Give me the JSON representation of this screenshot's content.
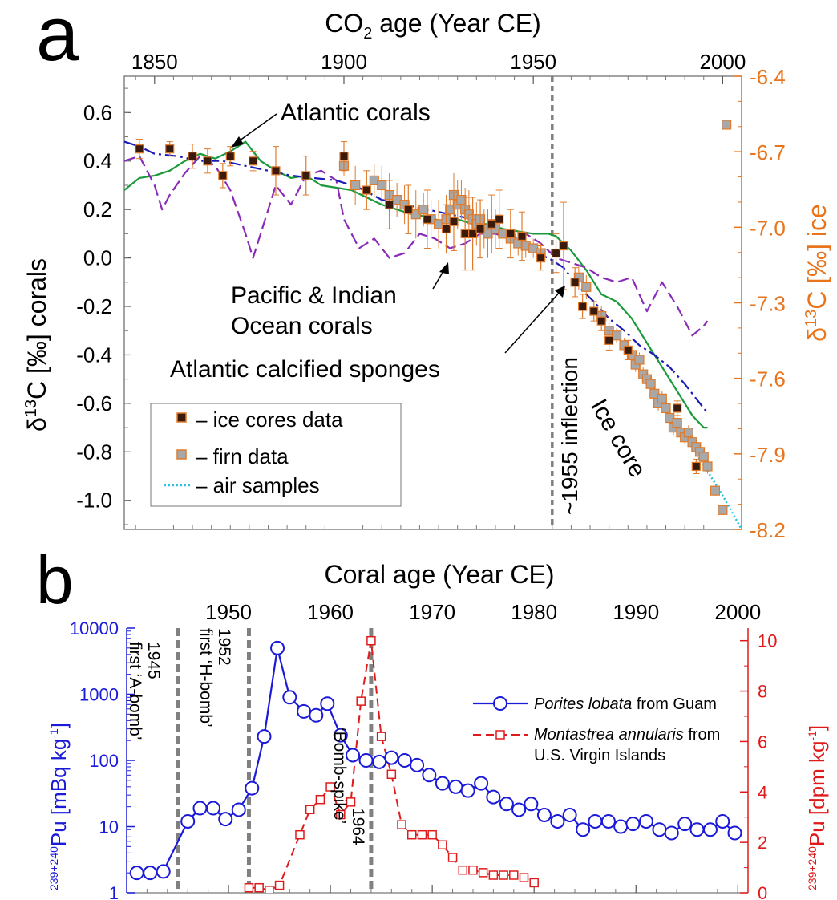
{
  "chart_data": [
    {
      "panel": "a",
      "type": "line",
      "title": "CO2 age (Year CE)",
      "title_base": "CO",
      "title_sub": "2",
      "title_rest": " age (Year CE)",
      "ylabel_left": "δ13C [‰] corals",
      "ylabel_left_parts": {
        "a": "δ",
        "sup": "13",
        "b": "C [‰] corals"
      },
      "ylabel_right": "δ13C [‰] ice",
      "ylabel_right_parts": {
        "a": "δ",
        "sup": "13",
        "b": "C [‰] ice"
      },
      "xlim": [
        1842,
        2005
      ],
      "xticks": [
        1850,
        1900,
        1950,
        2000
      ],
      "ylim_left": [
        -1.12,
        0.75
      ],
      "yticks_left": [
        0.6,
        0.4,
        0.2,
        0.0,
        -0.2,
        -0.4,
        -0.6,
        -0.8,
        -1.0
      ],
      "ytick_labels_left": [
        "0.6",
        "0.4",
        "0.2",
        "0.0",
        "-0.2",
        "-0.4",
        "-0.6",
        "-0.8",
        "-1.0"
      ],
      "ylim_right": [
        -8.2,
        -6.4
      ],
      "yticks_right": [
        -6.4,
        -6.7,
        -7.0,
        -7.3,
        -7.6,
        -7.9,
        -8.2
      ],
      "ytick_labels_right": [
        "-6.4",
        "-6.7",
        "-7.0",
        "-7.3",
        "-7.6",
        "-7.9",
        "-8.2"
      ],
      "colors": {
        "atlantic_corals": "#1a9a3a",
        "pacific": "#8a2bb8",
        "sponges": "#1a1ab8",
        "ice": "#3a1a0a",
        "ice_edge": "#e07a2a",
        "firn": "#a8a8a8",
        "air": "#2ac0e0",
        "right_axis": "#e8741c",
        "vline": "#808080"
      },
      "series": [
        {
          "name": "Atlantic corals",
          "style": "solid",
          "x": [
            1842,
            1846,
            1850,
            1854,
            1858,
            1862,
            1866,
            1870,
            1874,
            1876,
            1878,
            1882,
            1886,
            1890,
            1894,
            1898,
            1902,
            1906,
            1910,
            1914,
            1918,
            1922,
            1926,
            1930,
            1934,
            1938,
            1942,
            1946,
            1950,
            1954,
            1956,
            1960,
            1964,
            1968,
            1972,
            1976,
            1980,
            1984,
            1988,
            1992,
            1995,
            1996
          ],
          "y": [
            0.28,
            0.33,
            0.34,
            0.36,
            0.4,
            0.43,
            0.41,
            0.44,
            0.48,
            0.44,
            0.4,
            0.36,
            0.33,
            0.34,
            0.3,
            0.29,
            0.28,
            0.25,
            0.22,
            0.2,
            0.18,
            0.17,
            0.15,
            0.16,
            0.14,
            0.14,
            0.12,
            0.11,
            0.1,
            0.1,
            0.09,
            0.03,
            -0.05,
            -0.15,
            -0.18,
            -0.25,
            -0.35,
            -0.45,
            -0.55,
            -0.65,
            -0.7,
            -0.7
          ]
        },
        {
          "name": "Pacific & Indian Ocean corals",
          "style": "dashed",
          "x": [
            1842,
            1846,
            1850,
            1852,
            1854,
            1858,
            1862,
            1866,
            1870,
            1874,
            1876,
            1878,
            1882,
            1886,
            1890,
            1894,
            1898,
            1900,
            1904,
            1908,
            1912,
            1916,
            1920,
            1924,
            1928,
            1932,
            1936,
            1940,
            1944,
            1948,
            1952,
            1956,
            1960,
            1964,
            1968,
            1972,
            1976,
            1980,
            1984,
            1988,
            1992,
            1995,
            1996
          ],
          "y": [
            0.4,
            0.42,
            0.3,
            0.2,
            0.26,
            0.35,
            0.42,
            0.38,
            0.28,
            0.1,
            0.0,
            0.1,
            0.3,
            0.22,
            0.34,
            0.36,
            0.32,
            0.16,
            0.04,
            0.08,
            0.0,
            0.02,
            0.1,
            0.08,
            0.04,
            0.06,
            0.1,
            0.1,
            0.08,
            0.1,
            0.06,
            0.0,
            -0.02,
            -0.04,
            -0.08,
            -0.1,
            -0.08,
            -0.22,
            -0.1,
            -0.2,
            -0.32,
            -0.28,
            -0.26
          ]
        },
        {
          "name": "Atlantic calcified sponges",
          "style": "dashdot",
          "x": [
            1842,
            1846,
            1850,
            1856,
            1862,
            1868,
            1874,
            1880,
            1886,
            1892,
            1898,
            1904,
            1910,
            1916,
            1922,
            1928,
            1934,
            1940,
            1946,
            1950,
            1954,
            1958,
            1962,
            1966,
            1970,
            1974,
            1978,
            1982,
            1986,
            1990,
            1994,
            1996
          ],
          "y": [
            0.48,
            0.46,
            0.43,
            0.42,
            0.4,
            0.4,
            0.38,
            0.36,
            0.34,
            0.33,
            0.32,
            0.29,
            0.24,
            0.22,
            0.2,
            0.18,
            0.16,
            0.12,
            0.08,
            0.02,
            0.0,
            -0.04,
            -0.12,
            -0.18,
            -0.25,
            -0.3,
            -0.36,
            -0.4,
            -0.45,
            -0.52,
            -0.6,
            -0.64
          ]
        },
        {
          "name": "air samples",
          "style": "dotted",
          "x": [
            1992,
            1996,
            2000,
            2005
          ],
          "y": [
            -0.78,
            -0.88,
            -0.98,
            -1.12
          ]
        }
      ],
      "ice_cores": {
        "name": "ice cores data",
        "x": [
          1846,
          1854,
          1860,
          1864,
          1868,
          1870,
          1876,
          1882,
          1890,
          1900,
          1906,
          1912,
          1917,
          1922,
          1927,
          1929,
          1932,
          1934,
          1936,
          1939,
          1941,
          1944,
          1947,
          1952,
          1956,
          1958,
          1961,
          1963,
          1966,
          1968,
          1970,
          1975,
          1988,
          1993
        ],
        "y": [
          0.45,
          0.45,
          0.42,
          0.4,
          0.34,
          0.42,
          0.4,
          0.36,
          0.34,
          0.42,
          0.28,
          0.22,
          0.2,
          0.16,
          0.12,
          0.15,
          0.1,
          0.1,
          0.12,
          0.14,
          0.16,
          0.1,
          0.09,
          0.0,
          0.02,
          0.05,
          -0.1,
          -0.2,
          -0.22,
          -0.26,
          -0.34,
          -0.38,
          -0.62,
          -0.86
        ],
        "err": [
          0.04,
          0.03,
          0.05,
          0.05,
          0.05,
          0.04,
          0.04,
          0.1,
          0.08,
          0.06,
          0.08,
          0.1,
          0.1,
          0.12,
          0.1,
          0.12,
          0.15,
          0.15,
          0.12,
          0.12,
          0.12,
          0.1,
          0.1,
          0.05,
          0.08,
          0.18,
          0.06,
          0.05,
          0.04,
          0.04,
          0.04,
          0.04,
          0.03,
          0.03
        ]
      },
      "firn": {
        "name": "firn data",
        "x": [
          1900,
          1903,
          1908,
          1910,
          1912,
          1914,
          1916,
          1919,
          1921,
          1923,
          1925,
          1927,
          1928,
          1929,
          1930,
          1931,
          1932,
          1933,
          1934,
          1935,
          1936,
          1937,
          1938,
          1939,
          1940,
          1942,
          1944,
          1946,
          1948,
          1950,
          1952,
          1962,
          1964,
          1968,
          1970,
          1972,
          1974,
          1976,
          1977,
          1978,
          1979,
          1980,
          1981,
          1982,
          1983,
          1984,
          1985,
          1986,
          1987,
          1988,
          1989,
          1990,
          1991,
          1992,
          1993,
          1994,
          1995,
          1996,
          1998,
          2000,
          2001
        ],
        "y": [
          0.38,
          0.3,
          0.32,
          0.3,
          0.26,
          0.24,
          0.22,
          0.18,
          0.2,
          0.16,
          0.14,
          0.16,
          0.2,
          0.26,
          0.22,
          0.24,
          0.2,
          0.18,
          0.16,
          0.14,
          0.16,
          0.12,
          0.1,
          0.14,
          0.12,
          0.1,
          0.08,
          0.06,
          0.05,
          0.04,
          0.02,
          -0.08,
          -0.12,
          -0.24,
          -0.3,
          -0.32,
          -0.36,
          -0.4,
          -0.44,
          -0.42,
          -0.48,
          -0.5,
          -0.52,
          -0.56,
          -0.6,
          -0.58,
          -0.62,
          -0.66,
          -0.7,
          -0.68,
          -0.72,
          -0.74,
          -0.72,
          -0.76,
          -0.78,
          -0.8,
          -0.82,
          -0.86,
          -0.96,
          -1.04,
          0.55
        ],
        "err": [
          0.04,
          0.08,
          0.07,
          0.08,
          0.09,
          0.07,
          0.08,
          0.1,
          0.07,
          0.08,
          0.1,
          0.1,
          0.08,
          0.09,
          0.1,
          0.08,
          0.09,
          0.1,
          0.08,
          0.09,
          0.07,
          0.08,
          0.1,
          0.08,
          0.08,
          0.07,
          0.06,
          0.05,
          0.05,
          0.04,
          0.04,
          0.05,
          0.05,
          0.04,
          0.04,
          0.03,
          0.03,
          0.03,
          0.03,
          0.03,
          0.03,
          0.03,
          0.03,
          0.03,
          0.03,
          0.03,
          0.03,
          0.03,
          0.03,
          0.03,
          0.03,
          0.03,
          0.03,
          0.03,
          0.03,
          0.03,
          0.03,
          0.03,
          0.02,
          0.02,
          0.02
        ]
      },
      "inflection_x": 1955,
      "annotations": [
        {
          "text": "Atlantic corals",
          "pos": "top-center",
          "arrow_to": [
            1876,
            0.47
          ]
        },
        {
          "text": "Pacific & Indian",
          "pos": "middle-center",
          "arrow_to": [
            1928,
            0.03
          ]
        },
        {
          "text": "Ocean corals",
          "pos": "middle-center"
        },
        {
          "text": "Atlantic calcified sponges",
          "pos": "lower-center",
          "arrow_to": [
            1960,
            -0.04
          ]
        },
        {
          "text": "~1955 inflection",
          "orientation": "vertical"
        },
        {
          "text": "Ice core",
          "orientation": "rotated"
        }
      ],
      "legend": {
        "placement": "bottom-left",
        "items": [
          "– ice cores data",
          "– firn data",
          "– air samples"
        ]
      }
    },
    {
      "panel": "b",
      "type": "line",
      "title": "Coral age (Year CE)",
      "ylabel_left": "239+240Pu [mBq kg-1]",
      "ylabel_left_parts": {
        "sup1": "239+240",
        "base": "Pu [mBq kg",
        "sup2": "-1",
        "close": "]"
      },
      "ylabel_right": "239+240Pu [dpm kg-1]",
      "ylabel_right_parts": {
        "sup1": "239+240",
        "base": "Pu [dpm kg",
        "sup2": "-1",
        "close": "]"
      },
      "xlim": [
        1940,
        2001
      ],
      "xticks": [
        1950,
        1960,
        1970,
        1980,
        1990,
        2000
      ],
      "ylim_left": [
        1,
        10000
      ],
      "yscale_left": "log",
      "yticks_left": [
        1,
        10,
        100,
        1000,
        10000
      ],
      "ytick_labels_left": [
        "1",
        "10",
        "100",
        "1000",
        "10000"
      ],
      "ylim_right": [
        0,
        10.5
      ],
      "yticks_right": [
        0,
        2,
        4,
        6,
        8,
        10
      ],
      "ytick_labels_right": [
        "0",
        "2",
        "4",
        "6",
        "8",
        "10"
      ],
      "colors": {
        "left": "#1a1ad8",
        "right": "#e01a1a",
        "vline": "#808080"
      },
      "series": [
        {
          "name": "Porites lobata from Guam",
          "name_italic": "Porites lobata",
          "name_rest": " from Guam",
          "axis": "left",
          "x": [
            1941,
            1942.3,
            1943.6,
            1946,
            1947.2,
            1948.5,
            1949.7,
            1951,
            1952.3,
            1953.5,
            1954.8,
            1956,
            1957.4,
            1958.6,
            1959.7,
            1961,
            1962.2,
            1963.5,
            1964.8,
            1966,
            1967.3,
            1968.5,
            1969.7,
            1971,
            1972.3,
            1973.5,
            1974.8,
            1976,
            1977.3,
            1978.5,
            1979.7,
            1981,
            1982.3,
            1983.5,
            1984.8,
            1986,
            1987.3,
            1988.5,
            1989.7,
            1991,
            1992.3,
            1993.5,
            1994.8,
            1996,
            1997.3,
            1998.5,
            1999.7
          ],
          "y": [
            2,
            2,
            2.1,
            12,
            19,
            19,
            13,
            18,
            38,
            230,
            5000,
            900,
            550,
            480,
            720,
            240,
            120,
            100,
            95,
            110,
            100,
            85,
            60,
            45,
            40,
            35,
            45,
            28,
            22,
            18,
            22,
            15,
            12,
            15,
            9,
            12,
            12,
            10,
            11,
            12,
            9,
            8,
            11,
            9,
            9,
            12,
            8
          ]
        },
        {
          "name": "Montastrea annularis from U.S. Virgin Islands",
          "name_italic": "Montastrea annularis",
          "name_rest": " from",
          "name_line2": "U.S. Virgin Islands",
          "axis": "right",
          "x": [
            1952,
            1953,
            1954,
            1955,
            1957,
            1958,
            1959,
            1960,
            1961,
            1962,
            1963,
            1964,
            1965,
            1966,
            1967,
            1968,
            1969,
            1970,
            1971,
            1972,
            1973,
            1974,
            1975,
            1976,
            1977,
            1978,
            1979,
            1980
          ],
          "y": [
            0.2,
            0.2,
            0.1,
            0.3,
            2.3,
            3.3,
            3.7,
            4.2,
            3.1,
            3.6,
            7.6,
            10.0,
            6.2,
            4.7,
            2.7,
            2.3,
            2.3,
            2.3,
            1.9,
            1.4,
            0.9,
            0.9,
            0.8,
            0.7,
            0.7,
            0.7,
            0.6,
            0.4
          ]
        }
      ],
      "vlines": [
        {
          "x": 1945,
          "label": "1945",
          "label2": "first ‘A-bomb’"
        },
        {
          "x": 1952,
          "label": "1952",
          "label2": "first ‘H-bomb’"
        },
        {
          "x": 1964,
          "label": "1964",
          "label2": "‘Bomb-spike’"
        }
      ],
      "legend": {
        "placement": "right"
      }
    }
  ],
  "panel_labels": {
    "a": "a",
    "b": "b"
  }
}
